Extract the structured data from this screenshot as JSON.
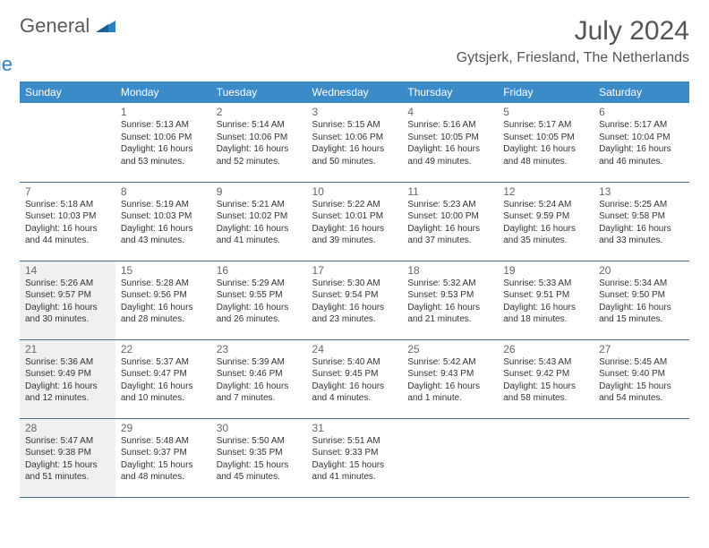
{
  "brand": {
    "part1": "General",
    "part2": "Blue"
  },
  "title": "July 2024",
  "location": "Gytsjerk, Friesland, The Netherlands",
  "colors": {
    "header_bg": "#3b8bc9",
    "header_fg": "#ffffff",
    "row_line": "#4a6b85",
    "shade": "#f0f0f0",
    "logo_blue": "#2a81c4",
    "logo_gray": "#5a5a5a"
  },
  "weekdays": [
    "Sunday",
    "Monday",
    "Tuesday",
    "Wednesday",
    "Thursday",
    "Friday",
    "Saturday"
  ],
  "weeks": [
    [
      {
        "day": "",
        "blank": true
      },
      {
        "day": "1",
        "sunrise": "Sunrise: 5:13 AM",
        "sunset": "Sunset: 10:06 PM",
        "daylight": "Daylight: 16 hours and 53 minutes."
      },
      {
        "day": "2",
        "sunrise": "Sunrise: 5:14 AM",
        "sunset": "Sunset: 10:06 PM",
        "daylight": "Daylight: 16 hours and 52 minutes."
      },
      {
        "day": "3",
        "sunrise": "Sunrise: 5:15 AM",
        "sunset": "Sunset: 10:06 PM",
        "daylight": "Daylight: 16 hours and 50 minutes."
      },
      {
        "day": "4",
        "sunrise": "Sunrise: 5:16 AM",
        "sunset": "Sunset: 10:05 PM",
        "daylight": "Daylight: 16 hours and 49 minutes."
      },
      {
        "day": "5",
        "sunrise": "Sunrise: 5:17 AM",
        "sunset": "Sunset: 10:05 PM",
        "daylight": "Daylight: 16 hours and 48 minutes."
      },
      {
        "day": "6",
        "sunrise": "Sunrise: 5:17 AM",
        "sunset": "Sunset: 10:04 PM",
        "daylight": "Daylight: 16 hours and 46 minutes."
      }
    ],
    [
      {
        "day": "7",
        "sunrise": "Sunrise: 5:18 AM",
        "sunset": "Sunset: 10:03 PM",
        "daylight": "Daylight: 16 hours and 44 minutes."
      },
      {
        "day": "8",
        "sunrise": "Sunrise: 5:19 AM",
        "sunset": "Sunset: 10:03 PM",
        "daylight": "Daylight: 16 hours and 43 minutes."
      },
      {
        "day": "9",
        "sunrise": "Sunrise: 5:21 AM",
        "sunset": "Sunset: 10:02 PM",
        "daylight": "Daylight: 16 hours and 41 minutes."
      },
      {
        "day": "10",
        "sunrise": "Sunrise: 5:22 AM",
        "sunset": "Sunset: 10:01 PM",
        "daylight": "Daylight: 16 hours and 39 minutes."
      },
      {
        "day": "11",
        "sunrise": "Sunrise: 5:23 AM",
        "sunset": "Sunset: 10:00 PM",
        "daylight": "Daylight: 16 hours and 37 minutes."
      },
      {
        "day": "12",
        "sunrise": "Sunrise: 5:24 AM",
        "sunset": "Sunset: 9:59 PM",
        "daylight": "Daylight: 16 hours and 35 minutes."
      },
      {
        "day": "13",
        "sunrise": "Sunrise: 5:25 AM",
        "sunset": "Sunset: 9:58 PM",
        "daylight": "Daylight: 16 hours and 33 minutes."
      }
    ],
    [
      {
        "day": "14",
        "sunrise": "Sunrise: 5:26 AM",
        "sunset": "Sunset: 9:57 PM",
        "daylight": "Daylight: 16 hours and 30 minutes.",
        "shade": true
      },
      {
        "day": "15",
        "sunrise": "Sunrise: 5:28 AM",
        "sunset": "Sunset: 9:56 PM",
        "daylight": "Daylight: 16 hours and 28 minutes."
      },
      {
        "day": "16",
        "sunrise": "Sunrise: 5:29 AM",
        "sunset": "Sunset: 9:55 PM",
        "daylight": "Daylight: 16 hours and 26 minutes."
      },
      {
        "day": "17",
        "sunrise": "Sunrise: 5:30 AM",
        "sunset": "Sunset: 9:54 PM",
        "daylight": "Daylight: 16 hours and 23 minutes."
      },
      {
        "day": "18",
        "sunrise": "Sunrise: 5:32 AM",
        "sunset": "Sunset: 9:53 PM",
        "daylight": "Daylight: 16 hours and 21 minutes."
      },
      {
        "day": "19",
        "sunrise": "Sunrise: 5:33 AM",
        "sunset": "Sunset: 9:51 PM",
        "daylight": "Daylight: 16 hours and 18 minutes."
      },
      {
        "day": "20",
        "sunrise": "Sunrise: 5:34 AM",
        "sunset": "Sunset: 9:50 PM",
        "daylight": "Daylight: 16 hours and 15 minutes."
      }
    ],
    [
      {
        "day": "21",
        "sunrise": "Sunrise: 5:36 AM",
        "sunset": "Sunset: 9:49 PM",
        "daylight": "Daylight: 16 hours and 12 minutes.",
        "shade": true
      },
      {
        "day": "22",
        "sunrise": "Sunrise: 5:37 AM",
        "sunset": "Sunset: 9:47 PM",
        "daylight": "Daylight: 16 hours and 10 minutes."
      },
      {
        "day": "23",
        "sunrise": "Sunrise: 5:39 AM",
        "sunset": "Sunset: 9:46 PM",
        "daylight": "Daylight: 16 hours and 7 minutes."
      },
      {
        "day": "24",
        "sunrise": "Sunrise: 5:40 AM",
        "sunset": "Sunset: 9:45 PM",
        "daylight": "Daylight: 16 hours and 4 minutes."
      },
      {
        "day": "25",
        "sunrise": "Sunrise: 5:42 AM",
        "sunset": "Sunset: 9:43 PM",
        "daylight": "Daylight: 16 hours and 1 minute."
      },
      {
        "day": "26",
        "sunrise": "Sunrise: 5:43 AM",
        "sunset": "Sunset: 9:42 PM",
        "daylight": "Daylight: 15 hours and 58 minutes."
      },
      {
        "day": "27",
        "sunrise": "Sunrise: 5:45 AM",
        "sunset": "Sunset: 9:40 PM",
        "daylight": "Daylight: 15 hours and 54 minutes."
      }
    ],
    [
      {
        "day": "28",
        "sunrise": "Sunrise: 5:47 AM",
        "sunset": "Sunset: 9:38 PM",
        "daylight": "Daylight: 15 hours and 51 minutes.",
        "shade": true
      },
      {
        "day": "29",
        "sunrise": "Sunrise: 5:48 AM",
        "sunset": "Sunset: 9:37 PM",
        "daylight": "Daylight: 15 hours and 48 minutes."
      },
      {
        "day": "30",
        "sunrise": "Sunrise: 5:50 AM",
        "sunset": "Sunset: 9:35 PM",
        "daylight": "Daylight: 15 hours and 45 minutes."
      },
      {
        "day": "31",
        "sunrise": "Sunrise: 5:51 AM",
        "sunset": "Sunset: 9:33 PM",
        "daylight": "Daylight: 15 hours and 41 minutes."
      },
      {
        "day": "",
        "blank": true
      },
      {
        "day": "",
        "blank": true
      },
      {
        "day": "",
        "blank": true
      }
    ]
  ]
}
